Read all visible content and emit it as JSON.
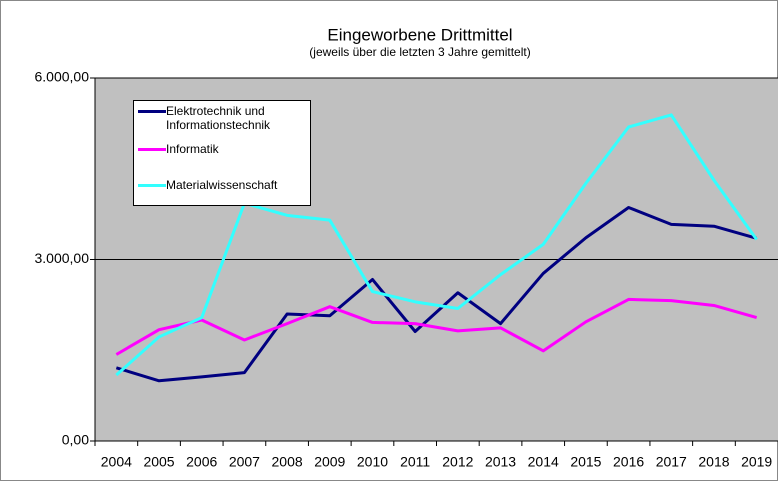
{
  "chart_data": {
    "type": "line",
    "title": "Eingeworbene Drittmittel",
    "subtitle": "(jeweils über die letzten 3 Jahre gemittelt)",
    "categories": [
      "2004",
      "2005",
      "2006",
      "2007",
      "2008",
      "2009",
      "2010",
      "2011",
      "2012",
      "2013",
      "2014",
      "2015",
      "2016",
      "2017",
      "2018",
      "2019"
    ],
    "series": [
      {
        "name": "Elektrotechnik und Informationstechnik",
        "color": "#000080",
        "values": [
          1210,
          995,
          1060,
          1130,
          2100,
          2070,
          2670,
          1810,
          2450,
          1940,
          2770,
          3360,
          3860,
          3580,
          3550,
          3350
        ]
      },
      {
        "name": "Informatik",
        "color": "#ff00ff",
        "values": [
          1430,
          1840,
          2000,
          1670,
          1940,
          2220,
          1960,
          1940,
          1820,
          1870,
          1490,
          1970,
          2340,
          2320,
          2240,
          2040
        ]
      },
      {
        "name": "Materialwissenschaft",
        "color": "#33ffff",
        "values": [
          1090,
          1720,
          2040,
          3930,
          3730,
          3650,
          2470,
          2300,
          2190,
          2750,
          3250,
          4260,
          5190,
          5390,
          4310,
          3330
        ]
      }
    ],
    "ylim": [
      0,
      6000
    ],
    "yticks": [
      {
        "value": 0,
        "label": "0,00"
      },
      {
        "value": 3000,
        "label": "3.000,00"
      },
      {
        "value": 6000,
        "label": "6.000,00"
      }
    ],
    "grid": true,
    "legend": "upper left"
  }
}
